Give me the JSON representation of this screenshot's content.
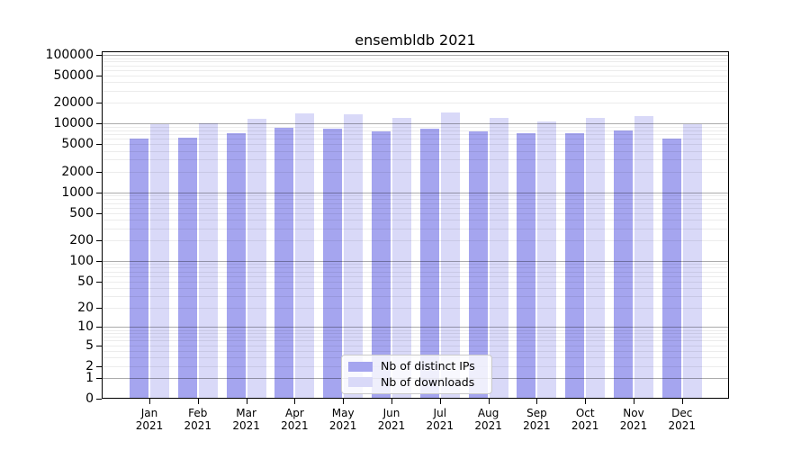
{
  "chart_data": {
    "type": "bar",
    "title": "ensembldb 2021",
    "categories": [
      "Jan 2021",
      "Feb 2021",
      "Mar 2021",
      "Apr 2021",
      "May 2021",
      "Jun 2021",
      "Jul 2021",
      "Aug 2021",
      "Sep 2021",
      "Oct 2021",
      "Nov 2021",
      "Dec 2021"
    ],
    "series": [
      {
        "name": "Nb of distinct IPs",
        "color": "#a5a5ef",
        "values": [
          6150,
          6240,
          7250,
          8840,
          8430,
          7700,
          8370,
          7800,
          7200,
          7250,
          7850,
          6080
        ]
      },
      {
        "name": "Nb of downloads",
        "color": "#d9d9f8",
        "values": [
          9900,
          10160,
          11900,
          14230,
          13500,
          12130,
          14520,
          12300,
          10740,
          12240,
          12730,
          9830
        ]
      }
    ],
    "yscale": "log10(1+x)",
    "ylim": [
      0,
      100000
    ],
    "yticks": [
      0,
      1,
      2,
      5,
      10,
      20,
      50,
      100,
      200,
      500,
      1000,
      2000,
      5000,
      10000,
      20000,
      50000,
      100000
    ],
    "grid": "major and minor horizontal gridlines drawn over bars",
    "legend_position": "bottom-center",
    "colors": {
      "major_grid": "#adadad",
      "minor_grid": "#ececec",
      "axis": "#000000",
      "background": "#ffffff"
    }
  },
  "legend": {
    "items": [
      {
        "label": "Nb of distinct IPs"
      },
      {
        "label": "Nb of downloads"
      }
    ]
  }
}
